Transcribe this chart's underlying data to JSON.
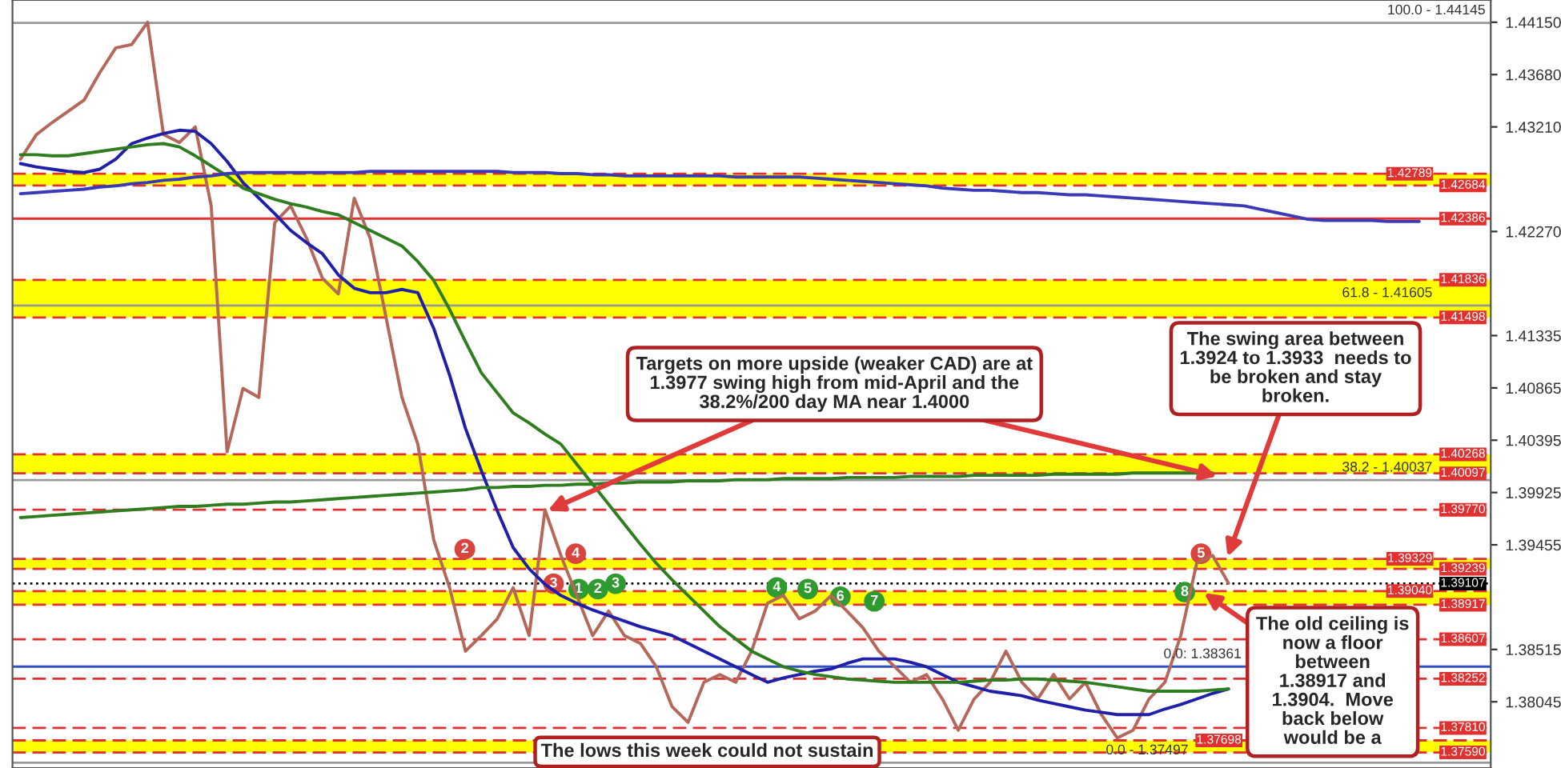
{
  "chart_data": {
    "type": "line",
    "categories": [
      null,
      null,
      null,
      null,
      null,
      null,
      null,
      null,
      null,
      null,
      null,
      null,
      null,
      null,
      null,
      null,
      null,
      null,
      null,
      null,
      null,
      null,
      null,
      null,
      null,
      null,
      null,
      null,
      null,
      null,
      null,
      null,
      null,
      null,
      null,
      null,
      null,
      null,
      null,
      null,
      null,
      null,
      null,
      null,
      null,
      null,
      null,
      null,
      null,
      null,
      null,
      null,
      null,
      null,
      null,
      null,
      null,
      null,
      null,
      null,
      null,
      null,
      null,
      null,
      null,
      null,
      null,
      null,
      null,
      null,
      null,
      null,
      null,
      null,
      null,
      null,
      null,
      null,
      null,
      null,
      null,
      null,
      null,
      null,
      null,
      null,
      null,
      null,
      null,
      null,
      null,
      null,
      null
    ],
    "tick_labels": "y",
    "ylim": [
      1.3745,
      1.4435
    ],
    "yticks": [
      {
        "value": 1.4415,
        "label": "1.44150"
      },
      {
        "value": 1.4368,
        "label": "1.43680"
      },
      {
        "value": 1.4321,
        "label": "1.43210"
      },
      {
        "value": 1.4227,
        "label": "1.42270"
      },
      {
        "value": 1.41335,
        "label": "1.41335"
      },
      {
        "value": 1.40865,
        "label": "1.40865"
      },
      {
        "value": 1.40395,
        "label": "1.40395"
      },
      {
        "value": 1.39925,
        "label": "1.39925"
      },
      {
        "value": 1.39455,
        "label": "1.39455"
      },
      {
        "value": 1.38515,
        "label": "1.38515"
      },
      {
        "value": 1.38045,
        "label": "1.38045"
      }
    ],
    "marker": "none",
    "line_style": "solid",
    "series": [
      {
        "color": "#b5675a",
        "values": [
          1.4292,
          1.4314,
          1.4325,
          1.4335,
          1.4345,
          1.437,
          1.4392,
          1.4395,
          1.4415,
          1.4314,
          1.4307,
          1.4321,
          1.425,
          1.4029,
          1.4086,
          1.4078,
          1.4235,
          1.425,
          1.4221,
          1.4185,
          1.4171,
          1.4257,
          1.4221,
          1.415,
          1.4078,
          1.4036,
          1.395,
          1.3907,
          1.385,
          1.3864,
          1.3879,
          1.3907,
          1.3864,
          1.3977,
          1.3936,
          1.39,
          1.3864,
          1.3886,
          1.3864,
          1.3857,
          1.3836,
          1.38,
          1.3786,
          1.3822,
          1.3829,
          1.3822,
          1.385,
          1.3893,
          1.39,
          1.3879,
          1.3886,
          1.39,
          1.3886,
          1.3871,
          1.385,
          1.3836,
          1.3822,
          1.3829,
          1.3807,
          1.3779,
          1.3807,
          1.3822,
          1.385,
          1.3822,
          1.3807,
          1.3829,
          1.3807,
          1.3822,
          1.3793,
          1.3772,
          1.3779,
          1.3807,
          1.3822,
          1.3864,
          1.3929,
          1.3936,
          1.3911,
          null,
          null,
          null,
          null,
          null,
          null,
          null,
          null,
          null,
          null,
          null,
          null,
          null,
          null,
          null,
          null
        ]
      },
      {
        "color": "#1f1fa8",
        "values": [
          1.4288,
          1.4285,
          1.4283,
          1.4281,
          1.428,
          1.4283,
          1.4292,
          1.4306,
          1.4311,
          1.4315,
          1.4318,
          1.4317,
          1.4306,
          1.429,
          1.4271,
          1.4257,
          1.4243,
          1.4228,
          1.4217,
          1.4207,
          1.4188,
          1.4176,
          1.4172,
          1.4172,
          1.4175,
          1.4172,
          1.414,
          1.4098,
          1.405,
          1.4012,
          1.3976,
          1.3943,
          1.3924,
          1.391,
          1.39,
          1.3893,
          1.3887,
          1.3882,
          1.3877,
          1.3872,
          1.3868,
          1.3864,
          1.3857,
          1.385,
          1.3843,
          1.3836,
          1.3829,
          1.3822,
          1.3826,
          1.3829,
          1.3832,
          1.3834,
          1.3839,
          1.3843,
          1.3843,
          1.3843,
          1.384,
          1.3836,
          1.3829,
          1.3822,
          1.3818,
          1.3814,
          1.3812,
          1.381,
          1.3806,
          1.3803,
          1.38,
          1.3797,
          1.3795,
          1.3793,
          1.3793,
          1.3793,
          1.3798,
          1.3802,
          1.3807,
          1.3812,
          1.3816,
          null,
          null,
          null,
          null,
          null,
          null,
          null,
          null,
          null,
          null,
          null,
          null,
          null,
          null,
          null,
          null
        ]
      },
      {
        "color": "#2e7d1e",
        "values": [
          1.4296,
          1.4296,
          1.4295,
          1.4295,
          1.4297,
          1.4299,
          1.4301,
          1.4303,
          1.4305,
          1.4306,
          1.4303,
          1.4295,
          1.4286,
          1.4277,
          1.4266,
          1.4261,
          1.4256,
          1.4252,
          1.4249,
          1.4245,
          1.4242,
          1.4235,
          1.4228,
          1.4221,
          1.4214,
          1.42,
          1.4183,
          1.4157,
          1.4128,
          1.41,
          1.4082,
          1.4064,
          1.4055,
          1.4045,
          1.4036,
          1.4018,
          1.4,
          1.3982,
          1.3964,
          1.3946,
          1.3929,
          1.3914,
          1.39,
          1.3886,
          1.3872,
          1.3861,
          1.385,
          1.3843,
          1.3836,
          1.3832,
          1.3829,
          1.3827,
          1.3825,
          1.3824,
          1.3823,
          1.3822,
          1.3822,
          1.3822,
          1.3822,
          1.3822,
          1.3823,
          1.3824,
          1.3824,
          1.3825,
          1.3825,
          1.3824,
          1.3823,
          1.3822,
          1.382,
          1.3818,
          1.3816,
          1.3814,
          1.3814,
          1.3814,
          1.3814,
          1.3815,
          1.3816,
          null,
          null,
          null,
          null,
          null,
          null,
          null,
          null,
          null,
          null,
          null,
          null,
          null,
          null,
          null,
          null
        ]
      },
      {
        "color": "#2e7d1e",
        "values": [
          1.397,
          1.3971,
          1.3972,
          1.3973,
          1.3974,
          1.3975,
          1.3976,
          1.3977,
          1.3978,
          1.3979,
          1.398,
          1.398,
          1.3981,
          1.3982,
          1.3982,
          1.3983,
          1.3984,
          1.3984,
          1.3985,
          1.3986,
          1.3987,
          1.3988,
          1.3989,
          1.399,
          1.3991,
          1.3992,
          1.3993,
          1.3994,
          1.3995,
          1.3997,
          1.3997,
          1.3998,
          1.3998,
          1.3999,
          1.3999,
          1.4,
          1.4,
          1.4001,
          1.4001,
          1.4002,
          1.4002,
          1.4002,
          1.4003,
          1.4003,
          1.4003,
          1.4004,
          1.4004,
          1.4004,
          1.4005,
          1.4005,
          1.4005,
          1.4005,
          1.4006,
          1.4006,
          1.4006,
          1.4006,
          1.4007,
          1.4007,
          1.4007,
          1.4007,
          1.4008,
          1.4008,
          1.4008,
          1.4008,
          1.4008,
          1.4009,
          1.4009,
          1.4009,
          1.4009,
          1.4009,
          1.401,
          1.401,
          1.401,
          1.401,
          1.401,
          1.401,
          null,
          null,
          null,
          null,
          null,
          null,
          null,
          null,
          null,
          null,
          null,
          null,
          null,
          null,
          null,
          null,
          null
        ]
      },
      {
        "color": "#3a3ab8",
        "values": [
          1.4261,
          1.4262,
          1.4263,
          1.4264,
          1.4265,
          1.4267,
          1.4268,
          1.427,
          1.4271,
          1.4273,
          1.4274,
          1.4276,
          1.4277,
          1.4279,
          1.428,
          1.428,
          1.428,
          1.428,
          1.428,
          1.428,
          1.428,
          1.428,
          1.4281,
          1.4281,
          1.4281,
          1.4281,
          1.4281,
          1.4281,
          1.4281,
          1.4281,
          1.4281,
          1.428,
          1.428,
          1.428,
          1.4279,
          1.4279,
          1.4278,
          1.4278,
          1.4277,
          1.4277,
          1.4277,
          1.4277,
          1.4277,
          1.4277,
          1.4277,
          1.4276,
          1.4276,
          1.4276,
          1.4276,
          1.4276,
          1.4275,
          1.4274,
          1.4273,
          1.4272,
          1.4271,
          1.427,
          1.4269,
          1.4268,
          1.4266,
          1.4265,
          1.4264,
          1.4264,
          1.4263,
          1.4262,
          1.4262,
          1.4261,
          1.426,
          1.426,
          1.4259,
          1.4258,
          1.4257,
          1.4256,
          1.4255,
          1.4254,
          1.4253,
          1.4252,
          1.4251,
          1.425,
          1.4247,
          1.4244,
          1.4241,
          1.4238,
          1.4237,
          1.4237,
          1.4237,
          1.4237,
          1.4236,
          1.4236,
          1.4236,
          null,
          null,
          null,
          null
        ]
      }
    ],
    "bands": [
      {
        "axis": "y",
        "from": 1.42684,
        "to": 1.42789,
        "color": "#ffff00"
      },
      {
        "axis": "y",
        "from": 1.41498,
        "to": 1.41836,
        "color": "#ffff00"
      },
      {
        "axis": "y",
        "from": 1.40097,
        "to": 1.40268,
        "color": "#ffff00"
      },
      {
        "axis": "y",
        "from": 1.39239,
        "to": 1.39329,
        "color": "#ffff00"
      },
      {
        "axis": "y",
        "from": 1.38917,
        "to": 1.3904,
        "color": "#ffff00"
      },
      {
        "axis": "y",
        "from": 1.3759,
        "to": 1.37698,
        "color": "#ffff00"
      }
    ],
    "ref_lines": [
      {
        "axis": "y",
        "value": 1.44145,
        "color": "#999999",
        "line_style": "solid"
      },
      {
        "axis": "y",
        "value": 1.41605,
        "color": "#999999",
        "line_style": "solid"
      },
      {
        "axis": "y",
        "value": 1.40037,
        "color": "#999999",
        "line_style": "solid"
      },
      {
        "axis": "y",
        "value": 1.37497,
        "color": "#999999",
        "line_style": "solid"
      },
      {
        "axis": "y",
        "value": 1.38361,
        "color": "#3050c0",
        "line_style": "solid"
      },
      {
        "axis": "y",
        "value": 1.42789,
        "label": "1.42789",
        "color": "#e03030",
        "line_style": "dashed"
      },
      {
        "axis": "y",
        "value": 1.42684,
        "label": "1.42684",
        "color": "#e03030",
        "line_style": "dashed"
      },
      {
        "axis": "y",
        "value": 1.42386,
        "label": "1.42386",
        "color": "#e03030",
        "line_style": "solid"
      },
      {
        "axis": "y",
        "value": 1.41836,
        "label": "1.41836",
        "color": "#e03030",
        "line_style": "dashed"
      },
      {
        "axis": "y",
        "value": 1.41498,
        "label": "1.41498",
        "color": "#e03030",
        "line_style": "dashed"
      },
      {
        "axis": "y",
        "value": 1.40268,
        "label": "1.40268",
        "color": "#e03030",
        "line_style": "dashed"
      },
      {
        "axis": "y",
        "value": 1.40097,
        "label": "1.40097",
        "color": "#e03030",
        "line_style": "dashed"
      },
      {
        "axis": "y",
        "value": 1.3977,
        "label": "1.39770",
        "color": "#e03030",
        "line_style": "dashed"
      },
      {
        "axis": "y",
        "value": 1.39329,
        "label": "1.39329",
        "color": "#e03030",
        "line_style": "dashed"
      },
      {
        "axis": "y",
        "value": 1.39239,
        "label": "1.39239",
        "color": "#e03030",
        "line_style": "dashed"
      },
      {
        "axis": "y",
        "value": 1.39107,
        "label": "1.39107",
        "color": "#000000",
        "line_style": "dotted"
      },
      {
        "axis": "y",
        "value": 1.3904,
        "label": "1.39040",
        "color": "#e03030",
        "line_style": "dashed"
      },
      {
        "axis": "y",
        "value": 1.38917,
        "label": "1.38917",
        "color": "#e03030",
        "line_style": "dashed"
      },
      {
        "axis": "y",
        "value": 1.38607,
        "label": "1.38607",
        "color": "#e03030",
        "line_style": "dashed"
      },
      {
        "axis": "y",
        "value": 1.38252,
        "label": "1.38252",
        "color": "#e03030",
        "line_style": "dashed"
      },
      {
        "axis": "y",
        "value": 1.3781,
        "label": "1.37810",
        "color": "#e03030",
        "line_style": "dashed"
      },
      {
        "axis": "y",
        "value": 1.37698,
        "label": "1.37698",
        "color": "#e03030",
        "line_style": "dashed"
      },
      {
        "axis": "y",
        "value": 1.3759,
        "label": "1.37590",
        "color": "#e03030",
        "line_style": "dashed"
      }
    ],
    "annotations": [
      "Targets on more upside (weaker CAD) are at\n1.3977 swing high from mid-April and the\n38.2%/200 day MA near 1.4000",
      "The swing area between\n1.3924 to 1.3933  needs to\nbe broken and stay\nbroken.",
      "The old ceiling is\nnow a floor\nbetween\n1.38917 and\n1.3904.  Move\nback below\nwould be a",
      "The lows this week could not sustain",
      "2",
      "3",
      "4",
      "1",
      "2",
      "3",
      "4",
      "5",
      "6",
      "7",
      "8",
      "5",
      {
        "text": "100.0 - 1.44145",
        "y": 1.44145
      },
      {
        "text": "61.8 - 1.41605",
        "y": 1.41605
      },
      {
        "text": "38.2 - 1.40037",
        "y": 1.40037
      },
      {
        "text": "0.0 - 1.37497",
        "y": 1.37497
      },
      {
        "text": "0.0: 1.38361",
        "y": 1.38361
      }
    ]
  }
}
